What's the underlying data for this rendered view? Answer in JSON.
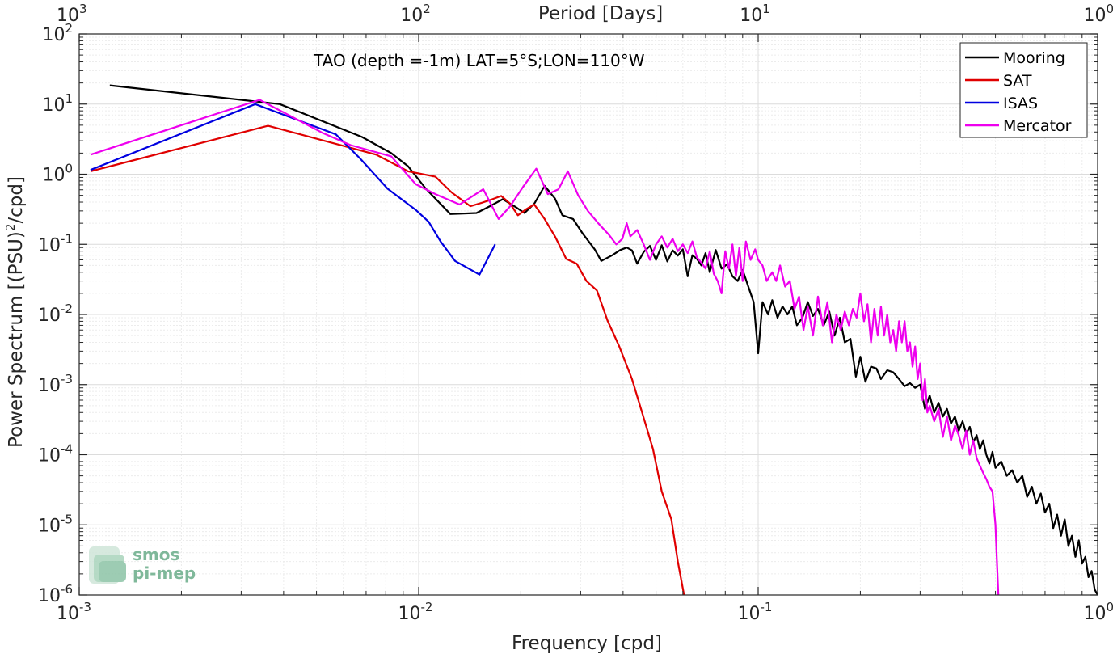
{
  "chart_data": {
    "type": "line",
    "xscale": "log",
    "yscale": "log",
    "xlabel": "Frequency [cpd]",
    "ylabel": "Power Spectrum [(PSU)",
    "ylabel_sup": "2",
    "ylabel_tail": "/cpd]",
    "top_axis_label": "Period [Days]",
    "annotation": "TAO (depth =-1m) LAT=5°S;LON=110°W",
    "xlim": [
      0.001,
      1
    ],
    "ylim": [
      1e-06,
      100
    ],
    "grid": true,
    "legend_position": "top-right",
    "x_ticks": [
      {
        "value": 0.001,
        "base": "10",
        "exp": "-3"
      },
      {
        "value": 0.01,
        "base": "10",
        "exp": "-2"
      },
      {
        "value": 0.1,
        "base": "10",
        "exp": "-1"
      },
      {
        "value": 1,
        "base": "10",
        "exp": "0"
      }
    ],
    "top_ticks": [
      {
        "value": 0.001,
        "base": "10",
        "exp": "3"
      },
      {
        "value": 0.01,
        "base": "10",
        "exp": "2"
      },
      {
        "value": 0.1,
        "base": "10",
        "exp": "1"
      },
      {
        "value": 1,
        "base": "10",
        "exp": "0"
      }
    ],
    "y_ticks": [
      {
        "value": 100,
        "base": "10",
        "exp": "2"
      },
      {
        "value": 10,
        "base": "10",
        "exp": "1"
      },
      {
        "value": 1,
        "base": "10",
        "exp": "0"
      },
      {
        "value": 0.1,
        "base": "10",
        "exp": "-1"
      },
      {
        "value": 0.01,
        "base": "10",
        "exp": "-2"
      },
      {
        "value": 0.001,
        "base": "10",
        "exp": "-3"
      },
      {
        "value": 0.0001,
        "base": "10",
        "exp": "-4"
      },
      {
        "value": 1e-05,
        "base": "10",
        "exp": "-5"
      },
      {
        "value": 1e-06,
        "base": "10",
        "exp": "-6"
      }
    ],
    "series": [
      {
        "name": "Mooring",
        "color": "#000000",
        "points": [
          [
            0.00123,
            18.5
          ],
          [
            0.0039,
            10.0
          ],
          [
            0.0068,
            3.4
          ],
          [
            0.0083,
            2.0
          ],
          [
            0.0093,
            1.3
          ],
          [
            0.0105,
            0.62
          ],
          [
            0.0124,
            0.27
          ],
          [
            0.0148,
            0.28
          ],
          [
            0.0162,
            0.35
          ],
          [
            0.0177,
            0.44
          ],
          [
            0.0193,
            0.34
          ],
          [
            0.0205,
            0.28
          ],
          [
            0.0219,
            0.38
          ],
          [
            0.0235,
            0.68
          ],
          [
            0.0252,
            0.45
          ],
          [
            0.0265,
            0.26
          ],
          [
            0.0285,
            0.23
          ],
          [
            0.0305,
            0.14
          ],
          [
            0.033,
            0.085
          ],
          [
            0.0345,
            0.058
          ],
          [
            0.0372,
            0.07
          ],
          [
            0.0392,
            0.083
          ],
          [
            0.041,
            0.09
          ],
          [
            0.0425,
            0.082
          ],
          [
            0.044,
            0.053
          ],
          [
            0.046,
            0.078
          ],
          [
            0.048,
            0.095
          ],
          [
            0.05,
            0.06
          ],
          [
            0.052,
            0.097
          ],
          [
            0.054,
            0.057
          ],
          [
            0.056,
            0.082
          ],
          [
            0.058,
            0.069
          ],
          [
            0.06,
            0.085
          ],
          [
            0.062,
            0.035
          ],
          [
            0.064,
            0.07
          ],
          [
            0.066,
            0.062
          ],
          [
            0.068,
            0.05
          ],
          [
            0.07,
            0.075
          ],
          [
            0.072,
            0.04
          ],
          [
            0.075,
            0.083
          ],
          [
            0.078,
            0.045
          ],
          [
            0.081,
            0.052
          ],
          [
            0.084,
            0.035
          ],
          [
            0.087,
            0.03
          ],
          [
            0.09,
            0.043
          ],
          [
            0.093,
            0.027
          ],
          [
            0.097,
            0.015
          ],
          [
            0.1,
            0.0028
          ],
          [
            0.103,
            0.015
          ],
          [
            0.107,
            0.01
          ],
          [
            0.11,
            0.016
          ],
          [
            0.114,
            0.009
          ],
          [
            0.118,
            0.013
          ],
          [
            0.122,
            0.01
          ],
          [
            0.126,
            0.013
          ],
          [
            0.13,
            0.007
          ],
          [
            0.135,
            0.009
          ],
          [
            0.14,
            0.015
          ],
          [
            0.145,
            0.0095
          ],
          [
            0.15,
            0.012
          ],
          [
            0.156,
            0.007
          ],
          [
            0.162,
            0.011
          ],
          [
            0.168,
            0.005
          ],
          [
            0.174,
            0.009
          ],
          [
            0.18,
            0.004
          ],
          [
            0.187,
            0.0045
          ],
          [
            0.194,
            0.0013
          ],
          [
            0.2,
            0.0025
          ],
          [
            0.207,
            0.0011
          ],
          [
            0.215,
            0.0018
          ],
          [
            0.223,
            0.0017
          ],
          [
            0.23,
            0.0012
          ],
          [
            0.24,
            0.0016
          ],
          [
            0.25,
            0.0015
          ],
          [
            0.26,
            0.0012
          ],
          [
            0.27,
            0.00095
          ],
          [
            0.28,
            0.00105
          ],
          [
            0.29,
            0.0009
          ],
          [
            0.3,
            0.001
          ],
          [
            0.31,
            0.00045
          ],
          [
            0.32,
            0.0007
          ],
          [
            0.33,
            0.0004
          ],
          [
            0.34,
            0.00055
          ],
          [
            0.35,
            0.00035
          ],
          [
            0.36,
            0.00045
          ],
          [
            0.37,
            0.00028
          ],
          [
            0.38,
            0.00035
          ],
          [
            0.39,
            0.00022
          ],
          [
            0.4,
            0.0003
          ],
          [
            0.41,
            0.0002
          ],
          [
            0.42,
            0.00025
          ],
          [
            0.43,
            0.00015
          ],
          [
            0.44,
            0.00019
          ],
          [
            0.45,
            0.00012
          ],
          [
            0.46,
            0.00016
          ],
          [
            0.47,
            0.0001
          ],
          [
            0.48,
            7.5e-05
          ],
          [
            0.49,
            0.00011
          ],
          [
            0.5,
            6.5e-05
          ],
          [
            0.52,
            8e-05
          ],
          [
            0.54,
            5e-05
          ],
          [
            0.56,
            6e-05
          ],
          [
            0.58,
            4e-05
          ],
          [
            0.6,
            5e-05
          ],
          [
            0.62,
            2.5e-05
          ],
          [
            0.64,
            3.5e-05
          ],
          [
            0.66,
            2e-05
          ],
          [
            0.68,
            2.8e-05
          ],
          [
            0.7,
            1.5e-05
          ],
          [
            0.72,
            2e-05
          ],
          [
            0.74,
            9e-06
          ],
          [
            0.76,
            1.4e-05
          ],
          [
            0.78,
            7e-06
          ],
          [
            0.8,
            1.2e-05
          ],
          [
            0.82,
            5e-06
          ],
          [
            0.84,
            7e-06
          ],
          [
            0.86,
            3.5e-06
          ],
          [
            0.88,
            6e-06
          ],
          [
            0.9,
            2.8e-06
          ],
          [
            0.92,
            3.5e-06
          ],
          [
            0.94,
            1.8e-06
          ],
          [
            0.96,
            2.2e-06
          ],
          [
            0.98,
            1.2e-06
          ],
          [
            1.0,
            9e-07
          ]
        ]
      },
      {
        "name": "SAT",
        "color": "#e00000",
        "points": [
          [
            0.00108,
            1.1
          ],
          [
            0.0036,
            4.9
          ],
          [
            0.0075,
            1.9
          ],
          [
            0.0093,
            1.1
          ],
          [
            0.0112,
            0.92
          ],
          [
            0.0125,
            0.55
          ],
          [
            0.0142,
            0.35
          ],
          [
            0.0153,
            0.39
          ],
          [
            0.0165,
            0.44
          ],
          [
            0.0175,
            0.49
          ],
          [
            0.0186,
            0.38
          ],
          [
            0.0196,
            0.26
          ],
          [
            0.0208,
            0.32
          ],
          [
            0.0219,
            0.37
          ],
          [
            0.0235,
            0.23
          ],
          [
            0.0252,
            0.13
          ],
          [
            0.0272,
            0.062
          ],
          [
            0.0292,
            0.053
          ],
          [
            0.0312,
            0.03
          ],
          [
            0.0335,
            0.022
          ],
          [
            0.036,
            0.0082
          ],
          [
            0.039,
            0.0035
          ],
          [
            0.0425,
            0.0012
          ],
          [
            0.0455,
            0.0004
          ],
          [
            0.049,
            0.00012
          ],
          [
            0.052,
            3e-05
          ],
          [
            0.0555,
            1.2e-05
          ],
          [
            0.058,
            3e-06
          ],
          [
            0.0605,
            1e-06
          ]
        ]
      },
      {
        "name": "ISAS",
        "color": "#0000e0",
        "points": [
          [
            0.00108,
            1.15
          ],
          [
            0.0033,
            10.0
          ],
          [
            0.0057,
            3.7
          ],
          [
            0.0067,
            1.7
          ],
          [
            0.0081,
            0.62
          ],
          [
            0.0098,
            0.31
          ],
          [
            0.0107,
            0.21
          ],
          [
            0.0116,
            0.11
          ],
          [
            0.0128,
            0.058
          ],
          [
            0.0151,
            0.037
          ],
          [
            0.0168,
            0.1
          ]
        ]
      },
      {
        "name": "Mercator",
        "color": "#ee00ee",
        "points": [
          [
            0.00108,
            1.9
          ],
          [
            0.0034,
            11.5
          ],
          [
            0.0052,
            3.9
          ],
          [
            0.0063,
            2.6
          ],
          [
            0.0083,
            1.8
          ],
          [
            0.0098,
            0.72
          ],
          [
            0.0112,
            0.52
          ],
          [
            0.0132,
            0.37
          ],
          [
            0.0155,
            0.61
          ],
          [
            0.0172,
            0.23
          ],
          [
            0.0186,
            0.35
          ],
          [
            0.0203,
            0.66
          ],
          [
            0.0222,
            1.2
          ],
          [
            0.024,
            0.52
          ],
          [
            0.0258,
            0.61
          ],
          [
            0.0275,
            1.1
          ],
          [
            0.0295,
            0.5
          ],
          [
            0.0315,
            0.3
          ],
          [
            0.0338,
            0.2
          ],
          [
            0.0362,
            0.14
          ],
          [
            0.0382,
            0.1
          ],
          [
            0.0398,
            0.12
          ],
          [
            0.041,
            0.2
          ],
          [
            0.042,
            0.13
          ],
          [
            0.044,
            0.16
          ],
          [
            0.046,
            0.1
          ],
          [
            0.048,
            0.06
          ],
          [
            0.05,
            0.1
          ],
          [
            0.052,
            0.13
          ],
          [
            0.054,
            0.09
          ],
          [
            0.056,
            0.12
          ],
          [
            0.058,
            0.08
          ],
          [
            0.06,
            0.1
          ],
          [
            0.062,
            0.075
          ],
          [
            0.064,
            0.11
          ],
          [
            0.066,
            0.065
          ],
          [
            0.068,
            0.055
          ],
          [
            0.07,
            0.045
          ],
          [
            0.072,
            0.08
          ],
          [
            0.074,
            0.038
          ],
          [
            0.076,
            0.03
          ],
          [
            0.078,
            0.02
          ],
          [
            0.08,
            0.08
          ],
          [
            0.082,
            0.045
          ],
          [
            0.084,
            0.1
          ],
          [
            0.086,
            0.035
          ],
          [
            0.088,
            0.09
          ],
          [
            0.09,
            0.03
          ],
          [
            0.092,
            0.11
          ],
          [
            0.095,
            0.06
          ],
          [
            0.098,
            0.085
          ],
          [
            0.1,
            0.06
          ],
          [
            0.103,
            0.05
          ],
          [
            0.106,
            0.03
          ],
          [
            0.11,
            0.04
          ],
          [
            0.113,
            0.03
          ],
          [
            0.116,
            0.05
          ],
          [
            0.12,
            0.025
          ],
          [
            0.124,
            0.03
          ],
          [
            0.128,
            0.012
          ],
          [
            0.132,
            0.018
          ],
          [
            0.136,
            0.006
          ],
          [
            0.14,
            0.013
          ],
          [
            0.145,
            0.005
          ],
          [
            0.15,
            0.018
          ],
          [
            0.155,
            0.007
          ],
          [
            0.16,
            0.015
          ],
          [
            0.165,
            0.004
          ],
          [
            0.17,
            0.01
          ],
          [
            0.175,
            0.006
          ],
          [
            0.18,
            0.011
          ],
          [
            0.185,
            0.007
          ],
          [
            0.19,
            0.012
          ],
          [
            0.195,
            0.009
          ],
          [
            0.2,
            0.02
          ],
          [
            0.205,
            0.008
          ],
          [
            0.21,
            0.014
          ],
          [
            0.215,
            0.004
          ],
          [
            0.22,
            0.012
          ],
          [
            0.225,
            0.005
          ],
          [
            0.23,
            0.013
          ],
          [
            0.235,
            0.005
          ],
          [
            0.24,
            0.01
          ],
          [
            0.245,
            0.004
          ],
          [
            0.25,
            0.006
          ],
          [
            0.255,
            0.003
          ],
          [
            0.26,
            0.008
          ],
          [
            0.265,
            0.004
          ],
          [
            0.27,
            0.008
          ],
          [
            0.275,
            0.003
          ],
          [
            0.28,
            0.004
          ],
          [
            0.285,
            0.0018
          ],
          [
            0.29,
            0.0035
          ],
          [
            0.295,
            0.0012
          ],
          [
            0.3,
            0.002
          ],
          [
            0.305,
            0.0006
          ],
          [
            0.31,
            0.0012
          ],
          [
            0.315,
            0.0004
          ],
          [
            0.32,
            0.0005
          ],
          [
            0.33,
            0.0003
          ],
          [
            0.34,
            0.00045
          ],
          [
            0.35,
            0.00018
          ],
          [
            0.36,
            0.00035
          ],
          [
            0.37,
            0.00016
          ],
          [
            0.38,
            0.00026
          ],
          [
            0.39,
            0.00019
          ],
          [
            0.4,
            0.00012
          ],
          [
            0.41,
            0.00022
          ],
          [
            0.42,
            0.0001
          ],
          [
            0.43,
            0.00016
          ],
          [
            0.44,
            9e-05
          ],
          [
            0.45,
            7e-05
          ],
          [
            0.46,
            5.5e-05
          ],
          [
            0.47,
            4.5e-05
          ],
          [
            0.48,
            3.5e-05
          ],
          [
            0.49,
            3e-05
          ],
          [
            0.5,
            1e-05
          ],
          [
            0.505,
            3e-06
          ],
          [
            0.51,
            1e-06
          ]
        ]
      }
    ]
  },
  "logo": {
    "line1": "smos",
    "line2": "pi-mep"
  }
}
